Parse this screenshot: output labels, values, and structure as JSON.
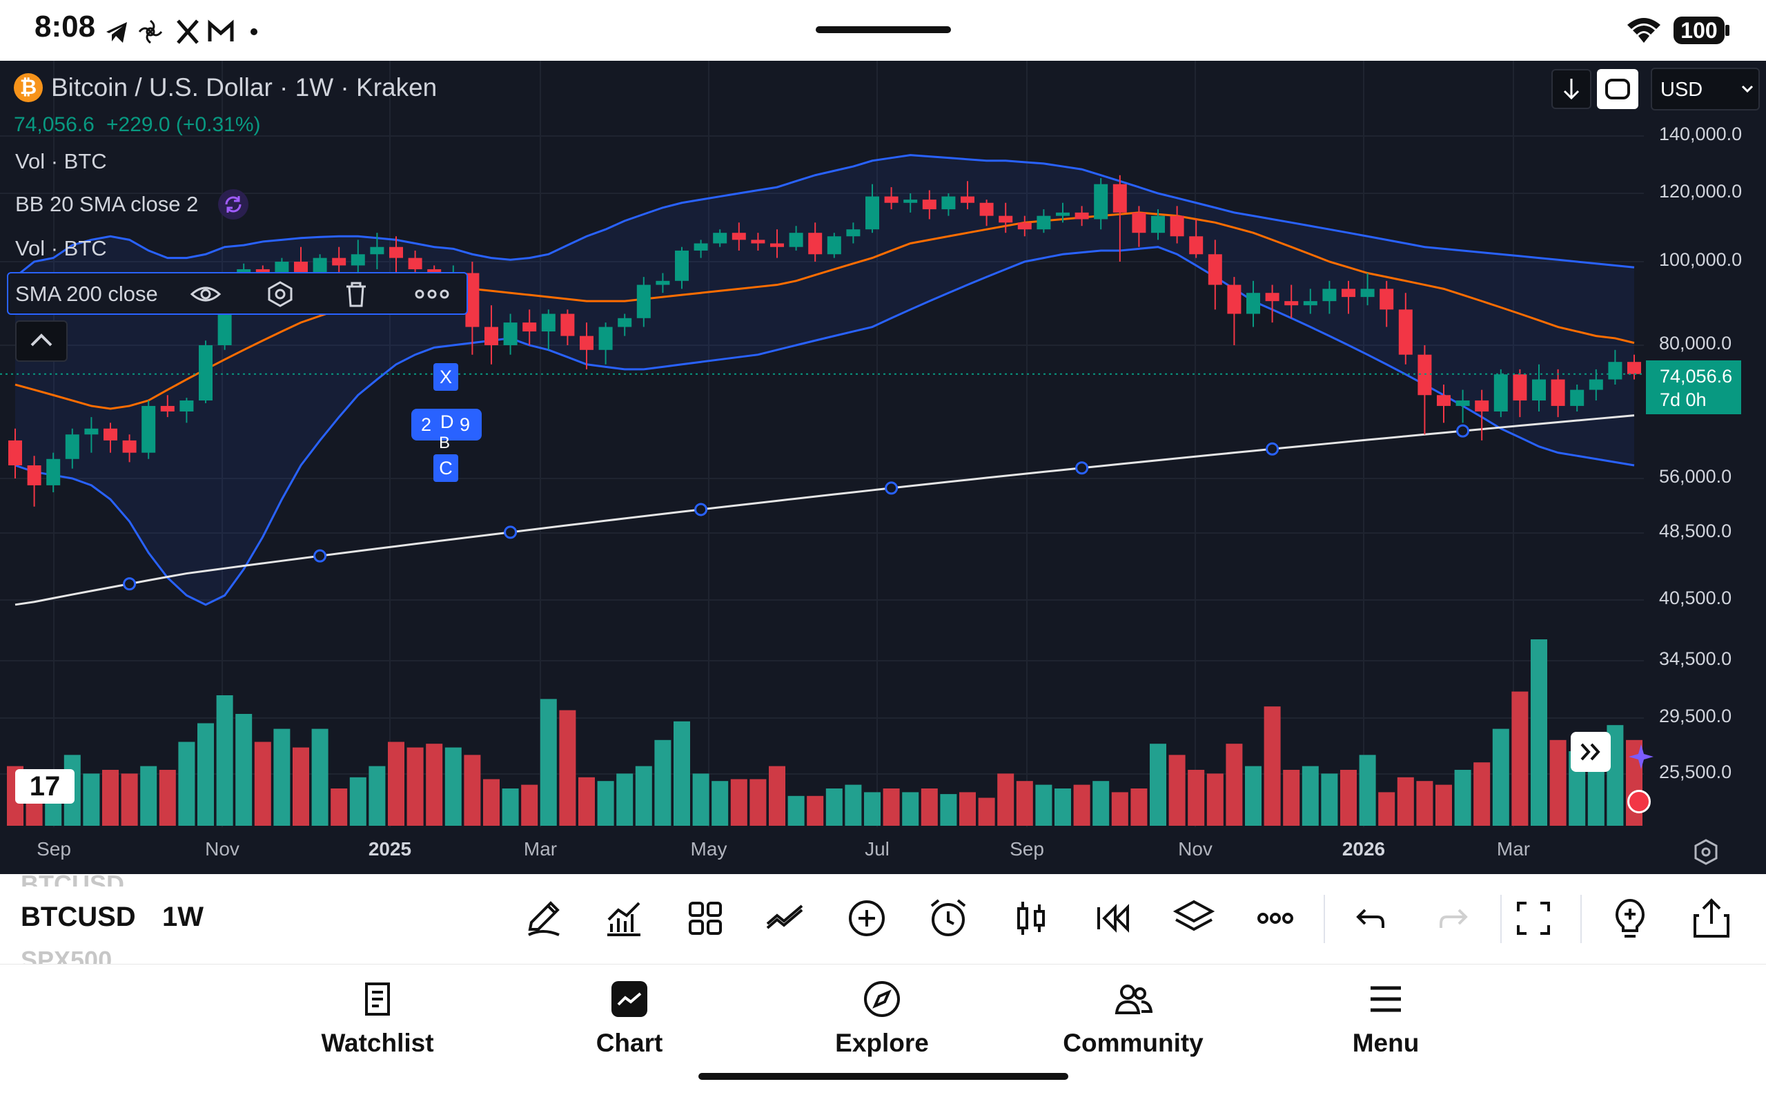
{
  "status_bar": {
    "time": "8:08",
    "notifications": [
      "telegram-icon",
      "pinwheel-icon",
      "x-icon",
      "gmail-icon",
      "dot"
    ],
    "battery": "100"
  },
  "header": {
    "symbol_title": "Bitcoin / U.S. Dollar · 1W · Kraken",
    "price": "74,056.6",
    "change": "+229.0 (+0.31%)",
    "currency": "USD"
  },
  "indicators": [
    {
      "label": "Vol · BTC"
    },
    {
      "label": "BB 20 SMA close 2"
    },
    {
      "label": "Vol · BTC"
    },
    {
      "label": "SMA 200 close"
    }
  ],
  "price_badge": {
    "price": "74,056.6",
    "countdown": "7d 0h"
  },
  "overlay_labels": {
    "x": "X",
    "d": "D",
    "b": "B",
    "c": "C",
    "left": "2",
    "right": "9"
  },
  "logo_text": "17",
  "toolbar": {
    "symbol": "BTCUSD",
    "interval": "1W",
    "prev_symbol": "BTCUSD",
    "next_symbol": "SPX500"
  },
  "bottom_nav": [
    {
      "label": "Watchlist",
      "icon": "watchlist-icon"
    },
    {
      "label": "Chart",
      "icon": "chart-icon"
    },
    {
      "label": "Explore",
      "icon": "compass-icon"
    },
    {
      "label": "Community",
      "icon": "community-icon"
    },
    {
      "label": "Menu",
      "icon": "menu-icon"
    }
  ],
  "colors": {
    "up": "#089981",
    "down": "#f23645",
    "bb_band": "#2962ff",
    "bb_basis": "#ff6d00",
    "sma200": "#e6e6e6",
    "background": "#141823"
  },
  "chart_data": {
    "type": "candlestick",
    "interval": "1W",
    "y_axis_ticks": [
      "140,000.0",
      "120,000.0",
      "100,000.0",
      "80,000.0",
      "56,000.0",
      "48,500.0",
      "40,500.0",
      "34,500.0",
      "29,500.0",
      "25,500.0"
    ],
    "x_axis_ticks": [
      "Sep",
      "Nov",
      "2025",
      "Mar",
      "May",
      "Jul",
      "Sep",
      "Nov",
      "2026",
      "Mar"
    ],
    "last_price": 74056.6,
    "candles": [
      [
        62000,
        64000,
        56000,
        58000
      ],
      [
        58000,
        59500,
        52000,
        55000
      ],
      [
        55000,
        60000,
        54000,
        59000
      ],
      [
        59000,
        64000,
        57500,
        63000
      ],
      [
        63000,
        66000,
        60000,
        64000
      ],
      [
        64000,
        65000,
        60000,
        62000
      ],
      [
        62000,
        63000,
        58500,
        60000
      ],
      [
        60000,
        69000,
        59000,
        68000
      ],
      [
        68000,
        70000,
        66000,
        67000
      ],
      [
        67000,
        69500,
        65000,
        69000
      ],
      [
        69000,
        81000,
        68500,
        80000
      ],
      [
        80000,
        92000,
        79000,
        91000
      ],
      [
        91000,
        99500,
        90000,
        98000
      ],
      [
        98000,
        99000,
        93000,
        97000
      ],
      [
        97000,
        101000,
        94000,
        100000
      ],
      [
        100000,
        104000,
        92000,
        96000
      ],
      [
        96000,
        102000,
        95000,
        101000
      ],
      [
        101000,
        104000,
        96000,
        99000
      ],
      [
        99000,
        106000,
        97000,
        102000
      ],
      [
        102000,
        108000,
        98000,
        104000
      ],
      [
        104000,
        107000,
        96000,
        101000
      ],
      [
        101000,
        103000,
        96000,
        98000
      ],
      [
        98000,
        99000,
        94000,
        96000
      ],
      [
        96000,
        99000,
        94000,
        97000
      ],
      [
        97000,
        100000,
        78000,
        84000
      ],
      [
        84000,
        89000,
        76000,
        80000
      ],
      [
        80000,
        87000,
        78000,
        85000
      ],
      [
        85000,
        88000,
        80000,
        83000
      ],
      [
        83000,
        88000,
        79000,
        87000
      ],
      [
        87000,
        88000,
        80000,
        82000
      ],
      [
        82000,
        85000,
        75000,
        79000
      ],
      [
        79000,
        85000,
        76000,
        84000
      ],
      [
        84000,
        87000,
        82000,
        86000
      ],
      [
        86000,
        96000,
        84000,
        94000
      ],
      [
        94000,
        97000,
        92000,
        95000
      ],
      [
        95000,
        104000,
        93000,
        103000
      ],
      [
        103000,
        106000,
        101000,
        105000
      ],
      [
        105000,
        109000,
        104000,
        108000
      ],
      [
        108000,
        111000,
        103000,
        106000
      ],
      [
        106000,
        108000,
        103000,
        105000
      ],
      [
        105000,
        109000,
        101000,
        104000
      ],
      [
        104000,
        110000,
        103000,
        108000
      ],
      [
        108000,
        111000,
        100000,
        102000
      ],
      [
        102000,
        108000,
        101000,
        107000
      ],
      [
        107000,
        111000,
        105000,
        109000
      ],
      [
        109000,
        123000,
        108000,
        119000
      ],
      [
        119000,
        122000,
        115000,
        117000
      ],
      [
        117000,
        120000,
        114000,
        118000
      ],
      [
        118000,
        121000,
        112000,
        115000
      ],
      [
        115000,
        120000,
        113000,
        119000
      ],
      [
        119000,
        124000,
        115000,
        117000
      ],
      [
        117000,
        118000,
        110000,
        113000
      ],
      [
        113000,
        117000,
        108000,
        111000
      ],
      [
        111000,
        113000,
        107000,
        109000
      ],
      [
        109000,
        115000,
        108000,
        113000
      ],
      [
        113000,
        117000,
        111000,
        114000
      ],
      [
        114000,
        116000,
        110000,
        112000
      ],
      [
        112000,
        125000,
        109000,
        123000
      ],
      [
        123000,
        126000,
        100000,
        114000
      ],
      [
        114000,
        116000,
        104000,
        108000
      ],
      [
        108000,
        115000,
        106000,
        113000
      ],
      [
        113000,
        116000,
        105000,
        107000
      ],
      [
        107000,
        112000,
        101000,
        102000
      ],
      [
        102000,
        106000,
        88000,
        94000
      ],
      [
        94000,
        96000,
        80000,
        87000
      ],
      [
        87000,
        95000,
        84000,
        92000
      ],
      [
        92000,
        94000,
        85000,
        90000
      ],
      [
        90000,
        94000,
        86000,
        89000
      ],
      [
        89000,
        93000,
        87000,
        90000
      ],
      [
        90000,
        95000,
        87000,
        93000
      ],
      [
        93000,
        95000,
        87000,
        91000
      ],
      [
        91000,
        97000,
        89000,
        93000
      ],
      [
        93000,
        95000,
        84000,
        88000
      ],
      [
        88000,
        92000,
        76000,
        78000
      ],
      [
        78000,
        80000,
        63000,
        70000
      ],
      [
        70000,
        72000,
        65000,
        68000
      ],
      [
        68000,
        71000,
        65000,
        69000
      ],
      [
        69000,
        71000,
        62000,
        67000
      ],
      [
        67000,
        75000,
        66000,
        74000
      ],
      [
        74000,
        75000,
        66000,
        69000
      ],
      [
        69000,
        76000,
        67000,
        73000
      ],
      [
        73000,
        75000,
        66000,
        68000
      ],
      [
        68000,
        72000,
        67000,
        71000
      ],
      [
        71000,
        75000,
        69000,
        73000
      ],
      [
        73000,
        79000,
        72000,
        76500
      ],
      [
        76500,
        78000,
        73000,
        74056.6
      ]
    ],
    "bollinger_upper": [
      96000,
      100000,
      101000,
      104500,
      106000,
      107000,
      106000,
      103000,
      101000,
      101000,
      102000,
      104000,
      104500,
      105500,
      106000,
      106500,
      106800,
      107000,
      107000,
      106500,
      106000,
      105000,
      104000,
      103500,
      102000,
      101000,
      100500,
      101000,
      102000,
      104500,
      107000,
      109000,
      111500,
      113500,
      115500,
      117000,
      118000,
      119000,
      120000,
      121000,
      122000,
      124000,
      126000,
      127500,
      129000,
      131000,
      132000,
      133000,
      132500,
      132000,
      131500,
      131000,
      131000,
      130500,
      130000,
      129000,
      128000,
      126000,
      124000,
      122000,
      120000,
      118500,
      117000,
      115500,
      114000,
      113000,
      112000,
      111000,
      110000,
      109000,
      108000,
      107000,
      106000,
      105000,
      104000,
      103500,
      103000,
      102500,
      102000,
      101500,
      101000,
      100500,
      100000,
      99500,
      99000,
      98500
    ],
    "bollinger_basis": [
      72000,
      71000,
      70000,
      69000,
      68000,
      67500,
      68000,
      69000,
      71000,
      73000,
      75000,
      77000,
      79000,
      81000,
      83000,
      85000,
      86500,
      88000,
      89000,
      90000,
      91000,
      92000,
      92500,
      93000,
      93000,
      92500,
      92000,
      91500,
      91000,
      90500,
      90000,
      90000,
      90000,
      90500,
      91000,
      91500,
      92000,
      92500,
      93000,
      93500,
      94000,
      95000,
      96500,
      98000,
      99500,
      101000,
      103000,
      105000,
      106000,
      107000,
      108000,
      109000,
      110000,
      111000,
      111500,
      112000,
      112500,
      113000,
      113500,
      114000,
      113500,
      113000,
      112000,
      111000,
      109500,
      108000,
      106000,
      104000,
      102000,
      100000,
      98500,
      97000,
      96000,
      95000,
      94000,
      93000,
      91500,
      90000,
      88500,
      87000,
      85500,
      84000,
      83000,
      82000,
      81500,
      80500
    ],
    "bollinger_lower": [
      58000,
      57000,
      56500,
      56000,
      55000,
      53000,
      50000,
      46000,
      43000,
      41000,
      40000,
      41000,
      44000,
      48000,
      53000,
      58000,
      62000,
      66000,
      70000,
      73000,
      76000,
      78000,
      79500,
      80000,
      80500,
      81000,
      81500,
      80000,
      79000,
      77500,
      76000,
      75500,
      75000,
      75000,
      75500,
      76000,
      76500,
      77000,
      77500,
      78000,
      79000,
      80000,
      81000,
      82000,
      83000,
      84000,
      86000,
      88000,
      90000,
      92000,
      94000,
      96000,
      98000,
      100000,
      101000,
      102000,
      102500,
      103000,
      103000,
      103500,
      104000,
      102000,
      99000,
      96000,
      93000,
      90000,
      88000,
      86000,
      84000,
      82000,
      80000,
      78000,
      76000,
      74000,
      72000,
      70000,
      68000,
      66000,
      64000,
      62500,
      61000,
      60000,
      59500,
      59000,
      58500,
      58000
    ],
    "sma200": [
      40000,
      40300,
      40700,
      41100,
      41500,
      41900,
      42300,
      42700,
      43100,
      43500,
      43800,
      44100,
      44400,
      44700,
      45000,
      45300,
      45600,
      45900,
      46200,
      46500,
      46800,
      47100,
      47400,
      47700,
      48000,
      48300,
      48600,
      48900,
      49200,
      49500,
      49800,
      50100,
      50400,
      50700,
      51000,
      51300,
      51600,
      51900,
      52200,
      52500,
      52800,
      53100,
      53400,
      53700,
      54000,
      54300,
      54600,
      54900,
      55200,
      55500,
      55800,
      56100,
      56400,
      56700,
      57000,
      57300,
      57600,
      57900,
      58200,
      58500,
      58800,
      59100,
      59400,
      59700,
      60000,
      60300,
      60600,
      60900,
      61200,
      61500,
      61800,
      62100,
      62400,
      62700,
      63000,
      63300,
      63600,
      63900,
      64200,
      64500,
      64800,
      65100,
      65400,
      65700,
      66000,
      66300
    ],
    "volume_relative": [
      0.32,
      0.3,
      0.28,
      0.38,
      0.28,
      0.3,
      0.28,
      0.32,
      0.3,
      0.45,
      0.55,
      0.7,
      0.6,
      0.45,
      0.52,
      0.42,
      0.52,
      0.2,
      0.26,
      0.32,
      0.45,
      0.42,
      0.44,
      0.42,
      0.38,
      0.25,
      0.2,
      0.22,
      0.68,
      0.62,
      0.26,
      0.24,
      0.28,
      0.32,
      0.46,
      0.56,
      0.28,
      0.24,
      0.25,
      0.25,
      0.32,
      0.16,
      0.16,
      0.2,
      0.22,
      0.18,
      0.2,
      0.18,
      0.2,
      0.17,
      0.18,
      0.15,
      0.28,
      0.24,
      0.22,
      0.2,
      0.22,
      0.24,
      0.18,
      0.2,
      0.44,
      0.38,
      0.3,
      0.28,
      0.44,
      0.32,
      0.64,
      0.3,
      0.32,
      0.28,
      0.3,
      0.38,
      0.18,
      0.26,
      0.24,
      0.22,
      0.3,
      0.34,
      0.52,
      0.72,
      1.0,
      0.46,
      0.4,
      0.5,
      0.54,
      0.46
    ]
  }
}
